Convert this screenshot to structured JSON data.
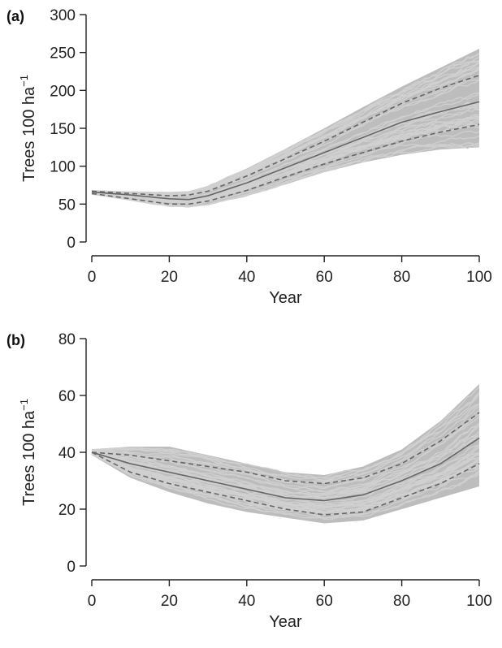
{
  "colors": {
    "band": "#bdbdbd",
    "simulations": "#d0d0d0",
    "mean": "#666666",
    "ci": "#666666"
  },
  "chart_data": [
    {
      "type": "line",
      "panel_label": "(a)",
      "xlabel": "Year",
      "ylabel_text": "Trees 100 ha",
      "ylabel_sup": "−1",
      "xlim": [
        0,
        100
      ],
      "ylim": [
        0,
        300
      ],
      "xticks": [
        0,
        20,
        40,
        60,
        80,
        100
      ],
      "yticks": [
        0,
        50,
        100,
        150,
        200,
        250,
        300
      ],
      "grid": false,
      "x": [
        0,
        10,
        20,
        25,
        30,
        40,
        50,
        60,
        70,
        80,
        90,
        100
      ],
      "series": [
        {
          "role": "mean",
          "values": [
            66,
            62,
            57,
            56,
            61,
            78,
            98,
            118,
            138,
            158,
            172,
            185
          ]
        },
        {
          "role": "upper",
          "values": [
            67,
            64,
            61,
            62,
            67,
            87,
            110,
            133,
            158,
            183,
            203,
            220
          ]
        },
        {
          "role": "lower",
          "values": [
            64,
            57,
            50,
            50,
            54,
            68,
            86,
            103,
            118,
            133,
            145,
            155
          ]
        },
        {
          "role": "envelope_max",
          "values": [
            68,
            66,
            66,
            67,
            74,
            97,
            123,
            150,
            178,
            205,
            230,
            255
          ]
        },
        {
          "role": "envelope_min",
          "values": [
            63,
            55,
            47,
            46,
            49,
            61,
            76,
            92,
            105,
            115,
            122,
            125
          ]
        }
      ]
    },
    {
      "type": "line",
      "panel_label": "(b)",
      "xlabel": "Year",
      "ylabel_text": "Trees 100 ha",
      "ylabel_sup": "−1",
      "xlim": [
        0,
        100
      ],
      "ylim": [
        0,
        80
      ],
      "xticks": [
        0,
        20,
        40,
        60,
        80,
        100
      ],
      "yticks": [
        0,
        20,
        40,
        60,
        80
      ],
      "grid": false,
      "x": [
        0,
        10,
        20,
        30,
        40,
        50,
        60,
        70,
        80,
        90,
        100
      ],
      "series": [
        {
          "role": "mean",
          "values": [
            40,
            36,
            33,
            30,
            27,
            24,
            23,
            25,
            30,
            36,
            45
          ]
        },
        {
          "role": "upper",
          "values": [
            40,
            39,
            37,
            35,
            33,
            30,
            29,
            31,
            36,
            44,
            54
          ]
        },
        {
          "role": "lower",
          "values": [
            40,
            33,
            29,
            26,
            23,
            20,
            18,
            19,
            24,
            29,
            36
          ]
        },
        {
          "role": "envelope_max",
          "values": [
            41,
            42,
            42,
            39,
            36,
            33,
            32,
            35,
            41,
            51,
            64
          ]
        },
        {
          "role": "envelope_min",
          "values": [
            39,
            31,
            26,
            22,
            19,
            17,
            15,
            16,
            20,
            24,
            28
          ]
        }
      ]
    }
  ]
}
